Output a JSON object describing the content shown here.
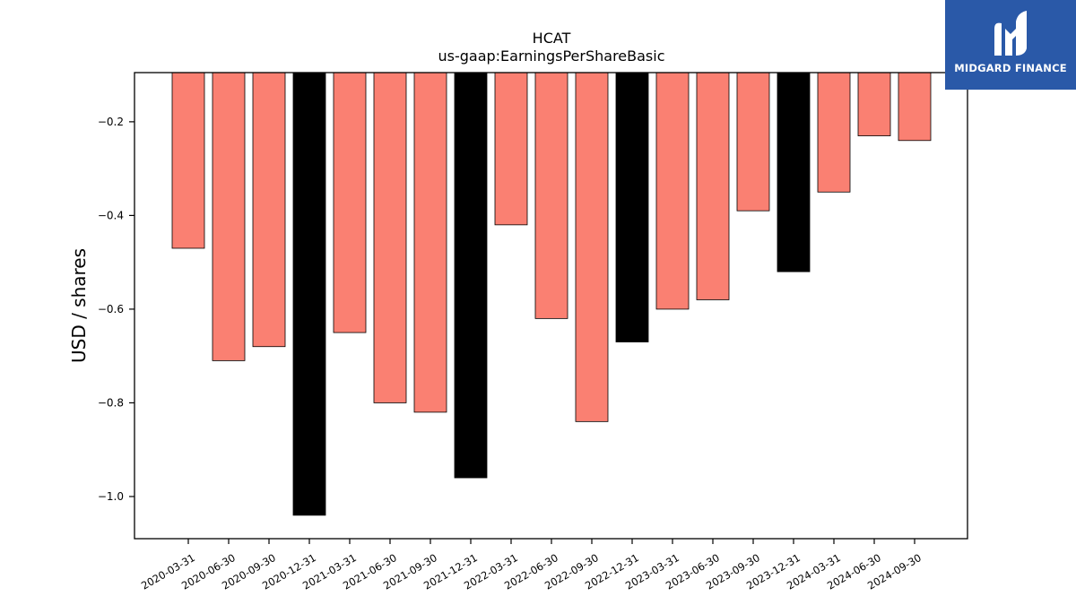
{
  "chart_data": {
    "type": "bar",
    "title": "HCAT",
    "subtitle": "us-gaap:EarningsPerShareBasic",
    "xlabel": "",
    "ylabel": "USD / shares",
    "ylim": [
      -1.09,
      -0.095
    ],
    "yticks": [
      -0.2,
      -0.4,
      -0.6,
      -0.8,
      -1.0
    ],
    "ytick_labels": [
      "−0.2",
      "−0.4",
      "−0.6",
      "−0.8",
      "−1.0"
    ],
    "grid": false,
    "categories": [
      "2020-03-31",
      "2020-06-30",
      "2020-09-30",
      "2020-12-31",
      "2021-03-31",
      "2021-06-30",
      "2021-09-30",
      "2021-12-31",
      "2022-03-31",
      "2022-06-30",
      "2022-09-30",
      "2022-12-31",
      "2023-03-31",
      "2023-06-30",
      "2023-09-30",
      "2023-12-31",
      "2024-03-31",
      "2024-06-30",
      "2024-09-30"
    ],
    "values": [
      -0.47,
      -0.71,
      -0.68,
      -1.04,
      -0.65,
      -0.8,
      -0.82,
      -0.96,
      -0.42,
      -0.62,
      -0.84,
      -0.67,
      -0.6,
      -0.58,
      -0.39,
      -0.52,
      -0.35,
      -0.23,
      -0.24
    ],
    "colors": {
      "quarter": "#fa8072",
      "year_end": "#000000",
      "edge": "#000000"
    },
    "year_end_categories": [
      "2020-12-31",
      "2021-12-31",
      "2022-12-31",
      "2023-12-31"
    ]
  },
  "logo": {
    "text": "MIDGARD FINANCE",
    "background": "#2a59a8"
  }
}
